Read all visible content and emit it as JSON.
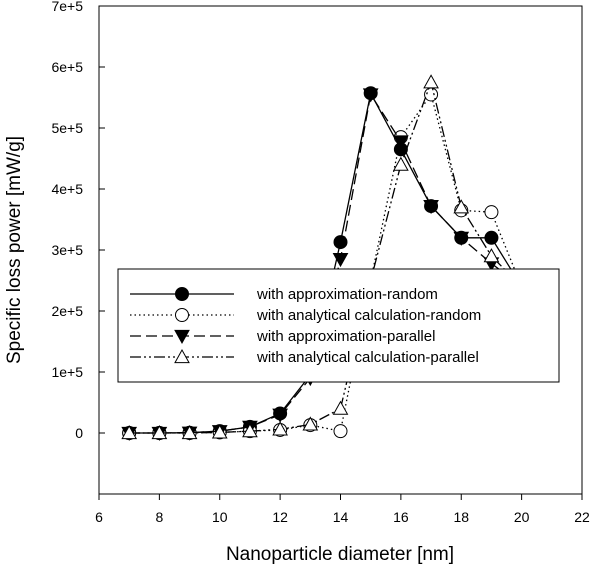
{
  "chart_data": {
    "type": "line",
    "xlabel": "Nanoparticle diameter [nm]",
    "ylabel": "Specific loss power [mW/g]",
    "xlim": [
      6,
      22
    ],
    "ylim": [
      -100000,
      700000
    ],
    "x_ticks": [
      6,
      8,
      10,
      12,
      14,
      16,
      18,
      20,
      22
    ],
    "x_tick_labels": [
      "6",
      "8",
      "10",
      "12",
      "14",
      "16",
      "18",
      "20",
      "22"
    ],
    "y_ticks": [
      0,
      100000,
      200000,
      300000,
      400000,
      500000,
      600000,
      700000
    ],
    "y_tick_labels": [
      "0",
      "1e+5",
      "2e+5",
      "3e+5",
      "4e+5",
      "5e+5",
      "6e+5",
      "7e+5"
    ],
    "grid": false,
    "legend_position": "center-left",
    "series": [
      {
        "name": "with approximation-random",
        "line_style": "solid",
        "marker": "filled-circle",
        "x": [
          7,
          8,
          9,
          10,
          11,
          12,
          13,
          14,
          15,
          16,
          17,
          18,
          19,
          20
        ],
        "y": [
          0,
          0,
          500,
          3000,
          10000,
          32000,
          95000,
          313000,
          557000,
          465000,
          372000,
          320000,
          320000,
          240000
        ]
      },
      {
        "name": "with analytical calculation-random",
        "line_style": "dotted",
        "marker": "open-circle",
        "x": [
          7,
          8,
          9,
          10,
          11,
          12,
          13,
          14,
          15,
          16,
          17,
          18,
          19,
          20
        ],
        "y": [
          0,
          0,
          0,
          1000,
          3000,
          5000,
          13000,
          3000,
          250000,
          485000,
          555000,
          365000,
          362000,
          240000
        ]
      },
      {
        "name": "with approximation-parallel",
        "line_style": "dashed",
        "marker": "filled-triangle-down",
        "x": [
          7,
          8,
          9,
          10,
          11,
          12,
          13,
          14,
          15,
          16,
          17,
          18,
          19,
          20
        ],
        "y": [
          0,
          0,
          500,
          3000,
          10000,
          30000,
          90000,
          285000,
          555000,
          478000,
          372000,
          320000,
          278000,
          240000
        ]
      },
      {
        "name": "with analytical calculation-parallel",
        "line_style": "dash-dot-dot",
        "marker": "open-triangle-up",
        "x": [
          7,
          8,
          9,
          10,
          11,
          12,
          13,
          14,
          15,
          16,
          17,
          18,
          19,
          20
        ],
        "y": [
          0,
          0,
          0,
          1000,
          3000,
          6000,
          14000,
          40000,
          250000,
          440000,
          575000,
          370000,
          290000,
          240000
        ]
      }
    ]
  }
}
